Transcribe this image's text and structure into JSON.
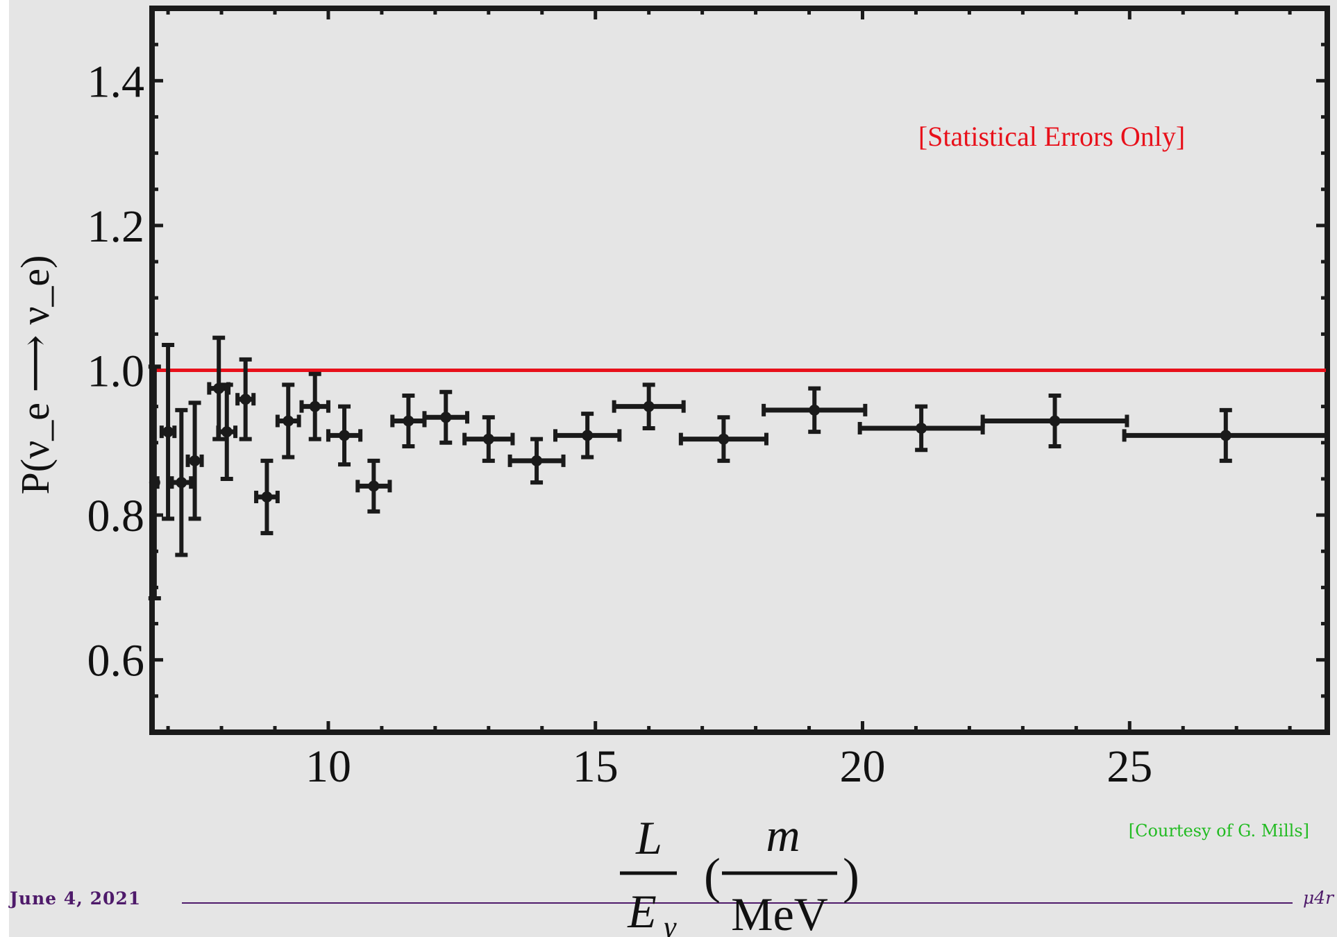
{
  "chart_data": {
    "type": "scatter",
    "ylabel": "P(ν_e ⟶ ν_e)",
    "xlabel_fraction": {
      "numerator": "L",
      "denominator": "E",
      "denominator_sub": "γ"
    },
    "xlabel_unit": {
      "open": "(",
      "numerator": "m",
      "denominator": "MeV",
      "close": ")"
    },
    "xlim": [
      6.7,
      28.7
    ],
    "ylim": [
      0.5,
      1.5
    ],
    "x_ticks": [
      10,
      15,
      20,
      25
    ],
    "x_tick_labels": [
      "10",
      "15",
      "20",
      "25"
    ],
    "y_ticks": [
      0.6,
      0.8,
      1.0,
      1.2,
      1.4
    ],
    "y_tick_labels": [
      "0.6",
      "0.8",
      "1.0",
      "1.2",
      "1.4"
    ],
    "reference_line": {
      "y": 1.0,
      "color": "#e8101a"
    },
    "annotation": "[Statistical Errors Only]",
    "annotation_color": "#e8101a",
    "series_color": "#1a1a1a",
    "points": [
      {
        "x": 6.75,
        "y": 0.845,
        "xerr": 0.05,
        "yerr": 0.16
      },
      {
        "x": 7.0,
        "y": 0.915,
        "xerr": 0.12,
        "yerr": 0.12
      },
      {
        "x": 7.25,
        "y": 0.845,
        "xerr": 0.18,
        "yerr": 0.1
      },
      {
        "x": 7.5,
        "y": 0.875,
        "xerr": 0.13,
        "yerr": 0.08
      },
      {
        "x": 7.95,
        "y": 0.975,
        "xerr": 0.18,
        "yerr": 0.07
      },
      {
        "x": 8.1,
        "y": 0.915,
        "xerr": 0.16,
        "yerr": 0.065
      },
      {
        "x": 8.45,
        "y": 0.96,
        "xerr": 0.15,
        "yerr": 0.055
      },
      {
        "x": 8.85,
        "y": 0.825,
        "xerr": 0.2,
        "yerr": 0.05
      },
      {
        "x": 9.25,
        "y": 0.93,
        "xerr": 0.2,
        "yerr": 0.05
      },
      {
        "x": 9.75,
        "y": 0.95,
        "xerr": 0.25,
        "yerr": 0.045
      },
      {
        "x": 10.3,
        "y": 0.91,
        "xerr": 0.3,
        "yerr": 0.04
      },
      {
        "x": 10.85,
        "y": 0.84,
        "xerr": 0.3,
        "yerr": 0.035
      },
      {
        "x": 11.5,
        "y": 0.93,
        "xerr": 0.3,
        "yerr": 0.035
      },
      {
        "x": 12.2,
        "y": 0.935,
        "xerr": 0.4,
        "yerr": 0.035
      },
      {
        "x": 13.0,
        "y": 0.905,
        "xerr": 0.45,
        "yerr": 0.03
      },
      {
        "x": 13.9,
        "y": 0.875,
        "xerr": 0.5,
        "yerr": 0.03
      },
      {
        "x": 14.85,
        "y": 0.91,
        "xerr": 0.6,
        "yerr": 0.03
      },
      {
        "x": 16.0,
        "y": 0.95,
        "xerr": 0.65,
        "yerr": 0.03
      },
      {
        "x": 17.4,
        "y": 0.905,
        "xerr": 0.8,
        "yerr": 0.03
      },
      {
        "x": 19.1,
        "y": 0.945,
        "xerr": 0.95,
        "yerr": 0.03
      },
      {
        "x": 21.1,
        "y": 0.92,
        "xerr": 1.15,
        "yerr": 0.03
      },
      {
        "x": 23.6,
        "y": 0.93,
        "xerr": 1.35,
        "yerr": 0.035
      },
      {
        "x": 26.8,
        "y": 0.91,
        "xerr": 1.9,
        "yerr": 0.035
      }
    ]
  },
  "credit": "[Courtesy of G. Mills]",
  "credit_color": "#22bb22",
  "footer": {
    "date": "June 4, 2021",
    "right": "μ4r",
    "color": "#4e1a6a"
  }
}
